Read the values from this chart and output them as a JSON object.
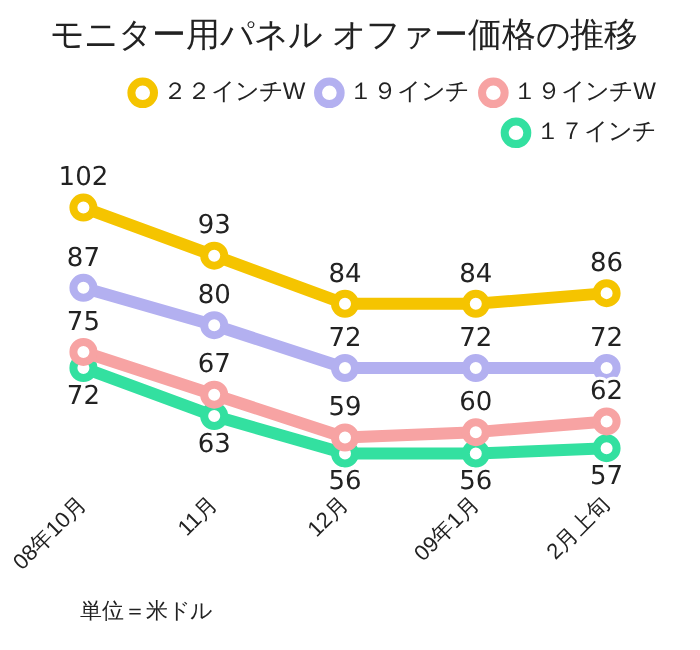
{
  "chart_data": {
    "type": "line",
    "title": "モニター用パネル オファー価格の推移",
    "categories": [
      "08年10月",
      "11月",
      "12月",
      "09年1月",
      "2月上旬"
    ],
    "series": [
      {
        "name": "２２インチW",
        "color": "#f5c400",
        "values": [
          102,
          93,
          84,
          84,
          86
        ]
      },
      {
        "name": "１９インチ",
        "color": "#b3b0f0",
        "values": [
          87,
          80,
          72,
          72,
          72
        ]
      },
      {
        "name": "１９インチW",
        "color": "#f7a3a3",
        "values": [
          75,
          67,
          59,
          60,
          62
        ]
      },
      {
        "name": "１７インチ",
        "color": "#33e0a0",
        "values": [
          72,
          63,
          56,
          56,
          57
        ]
      }
    ],
    "data_labels": true,
    "legend": "top right",
    "marker": "circle",
    "line_style": "solid",
    "grid": false,
    "tick_labels": "x",
    "annotations": [
      "単位＝米ドル"
    ]
  }
}
